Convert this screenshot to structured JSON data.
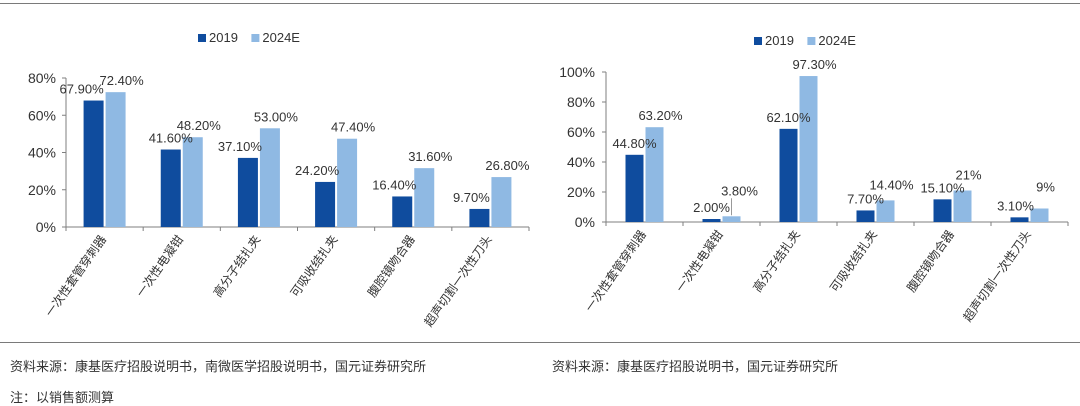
{
  "colors": {
    "s2019": "#0f4c9e",
    "s2024": "#8fb9e3",
    "axis": "#7f7f7f",
    "text": "#333333"
  },
  "chart_data": [
    {
      "type": "bar",
      "categories": [
        "一次性套管穿刺器",
        "一次性电凝钳",
        "高分子结扎夹",
        "可吸收结扎夹",
        "腹腔镜吻合器",
        "超声切割一次性刀头"
      ],
      "series": [
        {
          "name": "2019",
          "values": [
            67.9,
            41.6,
            37.1,
            24.2,
            16.4,
            9.7
          ],
          "labels": [
            "67.90%",
            "41.60%",
            "37.10%",
            "24.20%",
            "16.40%",
            "9.70%"
          ]
        },
        {
          "name": "2024E",
          "values": [
            72.4,
            48.2,
            53.0,
            47.4,
            31.6,
            26.8
          ],
          "labels": [
            "72.40%",
            "48.20%",
            "53.00%",
            "47.40%",
            "31.60%",
            "26.80%"
          ]
        }
      ],
      "ylim": [
        0,
        80
      ],
      "yticks": [
        "0%",
        "20%",
        "40%",
        "60%",
        "80%"
      ],
      "ytick_values": [
        0,
        20,
        40,
        60,
        80
      ],
      "legend": "top-center",
      "grid": false
    },
    {
      "type": "bar",
      "categories": [
        "一次性套管穿刺器",
        "一次性电凝钳",
        "高分子结扎夹",
        "可吸收结扎夹",
        "腹腔镜吻合器",
        "超声切割一次性刀头"
      ],
      "series": [
        {
          "name": "2019",
          "values": [
            44.8,
            2.0,
            62.1,
            7.7,
            15.1,
            3.1
          ],
          "labels": [
            "44.80%",
            "2.00%",
            "62.10%",
            "7.70%",
            "15.10%",
            "3.10%"
          ]
        },
        {
          "name": "2024E",
          "values": [
            63.2,
            3.8,
            97.3,
            14.4,
            21.0,
            9.0
          ],
          "labels": [
            "63.20%",
            "3.80%",
            "97.30%",
            "14.40%",
            "21%",
            "9%"
          ]
        }
      ],
      "ylim": [
        0,
        100
      ],
      "yticks": [
        "0%",
        "20%",
        "40%",
        "60%",
        "80%",
        "100%"
      ],
      "ytick_values": [
        0,
        20,
        40,
        60,
        80,
        100
      ],
      "legend": "top-center",
      "grid": false
    }
  ],
  "sources": {
    "left": "资料来源：康基医疗招股说明书，南微医学招股说明书，国元证券研究所",
    "right": "资料来源：康基医疗招股说明书，国元证券研究所",
    "note": "注：以销售额测算"
  }
}
